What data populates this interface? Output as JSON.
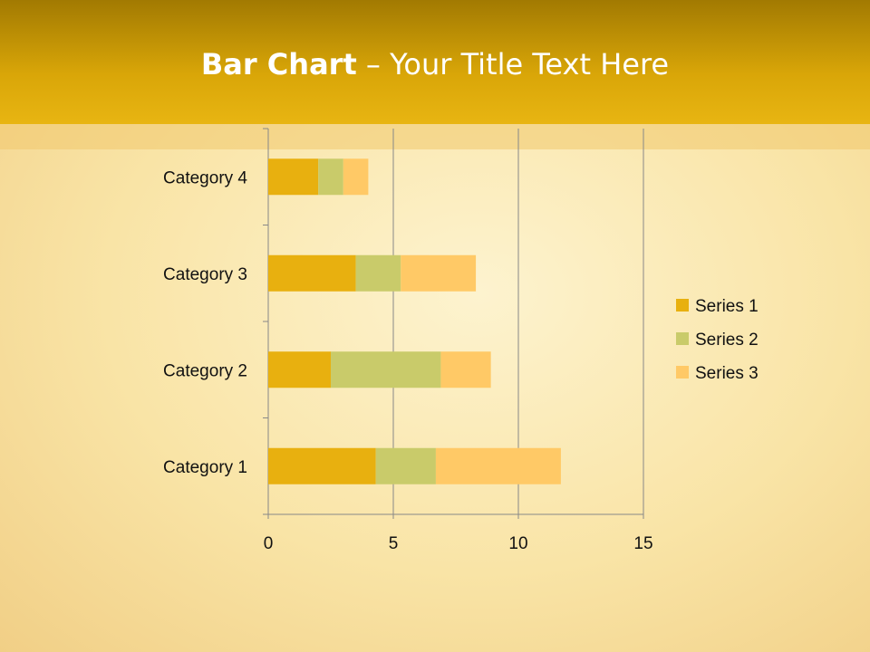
{
  "slide": {
    "title_bold": "Bar Chart",
    "title_rest": " – Your Title Text Here"
  },
  "chart_data": {
    "type": "bar",
    "orientation": "horizontal",
    "stacked": true,
    "categories": [
      "Category 1",
      "Category 2",
      "Category 3",
      "Category 4"
    ],
    "series": [
      {
        "name": "Series 1",
        "values": [
          4.3,
          2.5,
          3.5,
          2.0
        ],
        "color": "#e8b00f"
      },
      {
        "name": "Series 2",
        "values": [
          2.4,
          4.4,
          1.8,
          1.0
        ],
        "color": "#c9cb6a"
      },
      {
        "name": "Series 3",
        "values": [
          5.0,
          2.0,
          3.0,
          1.0
        ],
        "color": "#ffc966"
      }
    ],
    "xlim": [
      0,
      15
    ],
    "xticks": [
      "0",
      "5",
      "10",
      "15"
    ],
    "grid": true,
    "legend": "right"
  }
}
